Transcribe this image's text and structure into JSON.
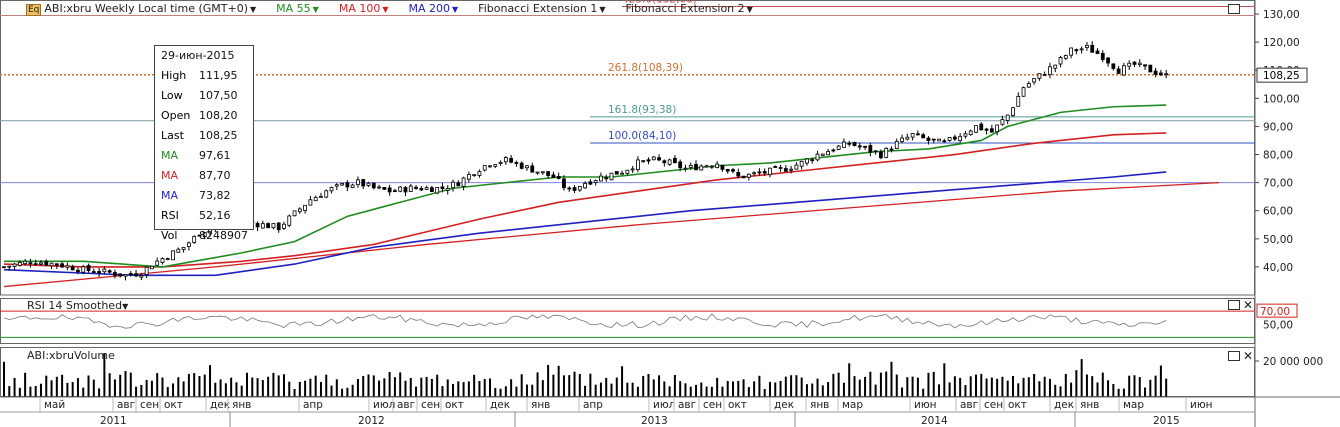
{
  "header": {
    "icon": "Eq",
    "instrument": "ABI:xbru Weekly Local time (GMT+0)",
    "ma55": "MA 55",
    "ma100": "MA 100",
    "ma200": "MA 200",
    "fib1": "Fibonacci Extension 1",
    "fib2": "Fibonacci Extension 2"
  },
  "info": {
    "date": "29-июн-2015",
    "rows": [
      {
        "label": "High",
        "value": "111,95",
        "color": "#000000"
      },
      {
        "label": "Low",
        "value": "107,50",
        "color": "#000000"
      },
      {
        "label": "Open",
        "value": "108,20",
        "color": "#000000"
      },
      {
        "label": "Last",
        "value": "108,25",
        "color": "#000000"
      },
      {
        "label": "MA",
        "value": "97,61",
        "color": "#1e8c1e"
      },
      {
        "label": "MA",
        "value": "87,70",
        "color": "#d42020"
      },
      {
        "label": "MA",
        "value": "73,82",
        "color": "#2020c0"
      },
      {
        "label": "RSI",
        "value": "52,16",
        "color": "#000000"
      },
      {
        "label": "Vol",
        "value": "8248907",
        "color": "#000000"
      }
    ]
  },
  "rsi_panel": {
    "title": "RSI 14 Smoothed",
    "level_label": "70,00"
  },
  "volume_panel": {
    "title": "ABI:xbruVolume",
    "axis_label": "20 000 000"
  },
  "chart_data": {
    "type": "candlestick",
    "price_axis": {
      "min": 30,
      "max": 135,
      "ticks": [
        "40,00",
        "50,00",
        "60,00",
        "70,00",
        "80,00",
        "90,00",
        "100,00",
        "110,00",
        "120,00",
        "130,00"
      ],
      "tick_values": [
        40,
        50,
        60,
        70,
        80,
        90,
        100,
        110,
        120,
        130
      ]
    },
    "last_price": {
      "value": 108.25,
      "label": "108,25"
    },
    "fibonacci_levels": [
      {
        "label": "423.6(132,68)",
        "value": 132.68,
        "color": "#c05050"
      },
      {
        "label": "261.8(108,39)",
        "value": 108.39,
        "color": "#d07030"
      },
      {
        "label": "161.8(93,38)",
        "value": 93.38,
        "color": "#4a9a9a"
      },
      {
        "label": "100.0(84,10)",
        "value": 84.1,
        "color": "#3050c0"
      }
    ],
    "horizontal_lines": [
      {
        "value": 129.5,
        "color": "#c08080"
      },
      {
        "value": 92.0,
        "color": "#7a9aa0"
      },
      {
        "value": 70.0,
        "color": "#8080e0"
      }
    ],
    "series_anchors": {
      "close": [
        [
          0,
          40
        ],
        [
          5,
          42
        ],
        [
          10,
          41
        ],
        [
          15,
          39
        ],
        [
          20,
          38
        ],
        [
          23,
          37
        ],
        [
          26,
          38
        ],
        [
          28,
          41
        ],
        [
          31,
          44
        ],
        [
          34,
          47
        ],
        [
          37,
          52
        ],
        [
          40,
          55
        ],
        [
          43,
          56
        ],
        [
          46,
          56
        ],
        [
          49,
          55
        ],
        [
          52,
          54
        ],
        [
          55,
          59
        ],
        [
          58,
          64
        ],
        [
          61,
          67
        ],
        [
          64,
          69
        ],
        [
          67,
          70
        ],
        [
          70,
          68
        ],
        [
          73,
          67
        ],
        [
          77,
          68
        ],
        [
          80,
          68
        ],
        [
          83,
          68
        ],
        [
          86,
          70
        ],
        [
          89,
          74
        ],
        [
          92,
          77
        ],
        [
          95,
          78
        ],
        [
          98,
          76
        ],
        [
          101,
          74
        ],
        [
          104,
          72
        ],
        [
          107,
          67
        ],
        [
          110,
          70
        ],
        [
          113,
          72
        ],
        [
          117,
          74
        ],
        [
          120,
          77
        ],
        [
          123,
          78
        ],
        [
          126,
          77
        ],
        [
          129,
          75
        ],
        [
          132,
          76
        ],
        [
          135,
          77
        ],
        [
          139,
          72
        ],
        [
          142,
          73
        ],
        [
          145,
          74
        ],
        [
          148,
          75
        ],
        [
          151,
          77
        ],
        [
          154,
          80
        ],
        [
          157,
          82
        ],
        [
          160,
          84
        ],
        [
          163,
          82
        ],
        [
          166,
          80
        ],
        [
          169,
          84
        ],
        [
          172,
          87
        ],
        [
          175,
          85
        ],
        [
          178,
          84
        ],
        [
          181,
          87
        ],
        [
          184,
          90
        ],
        [
          187,
          88
        ],
        [
          190,
          94
        ],
        [
          193,
          104
        ],
        [
          196,
          108
        ],
        [
          199,
          112
        ],
        [
          202,
          117
        ],
        [
          205,
          118
        ],
        [
          208,
          115
        ],
        [
          211,
          110
        ],
        [
          214,
          112
        ],
        [
          217,
          110
        ],
        [
          220,
          108
        ]
      ],
      "ma55": [
        [
          0,
          42
        ],
        [
          15,
          42
        ],
        [
          30,
          40
        ],
        [
          45,
          45
        ],
        [
          55,
          49
        ],
        [
          65,
          58
        ],
        [
          75,
          63
        ],
        [
          85,
          68
        ],
        [
          95,
          70
        ],
        [
          105,
          72
        ],
        [
          115,
          72
        ],
        [
          125,
          74
        ],
        [
          135,
          76
        ],
        [
          145,
          77
        ],
        [
          155,
          79
        ],
        [
          165,
          81
        ],
        [
          175,
          82
        ],
        [
          185,
          85
        ],
        [
          190,
          90
        ],
        [
          200,
          95
        ],
        [
          210,
          97
        ],
        [
          220,
          97.6
        ]
      ],
      "ma100": [
        [
          0,
          41
        ],
        [
          15,
          40
        ],
        [
          30,
          40
        ],
        [
          45,
          42
        ],
        [
          55,
          44
        ],
        [
          70,
          48
        ],
        [
          90,
          57
        ],
        [
          105,
          63
        ],
        [
          120,
          67
        ],
        [
          135,
          71
        ],
        [
          150,
          74
        ],
        [
          165,
          77
        ],
        [
          180,
          80
        ],
        [
          195,
          84
        ],
        [
          210,
          87
        ],
        [
          220,
          87.7
        ]
      ],
      "ma200": [
        [
          0,
          39
        ],
        [
          25,
          37
        ],
        [
          40,
          37
        ],
        [
          55,
          41
        ],
        [
          70,
          47
        ],
        [
          90,
          52
        ],
        [
          110,
          56
        ],
        [
          130,
          60
        ],
        [
          150,
          63
        ],
        [
          170,
          66
        ],
        [
          190,
          69
        ],
        [
          210,
          72
        ],
        [
          220,
          73.8
        ]
      ],
      "trend_channel": [
        [
          0,
          33
        ],
        [
          40,
          40
        ],
        [
          80,
          48
        ],
        [
          120,
          55
        ],
        [
          160,
          61
        ],
        [
          200,
          67
        ],
        [
          230,
          70
        ]
      ]
    },
    "rsi": {
      "levels": [
        70
      ],
      "last": 52.16,
      "axis_ticks": [
        "50,00"
      ]
    },
    "x_axis": {
      "months": [
        "май",
        "авг",
        "сен",
        "окт",
        "дек",
        "янв",
        "апр",
        "июл",
        "авг",
        "сен",
        "окт",
        "дек",
        "янв",
        "апр",
        "июл",
        "авг",
        "сен",
        "окт",
        "дек",
        "янв",
        "мар",
        "июн",
        "авг",
        "сен",
        "окт",
        "дек",
        "янв",
        "мар",
        "июн"
      ],
      "years": [
        "2011",
        "2012",
        "2013",
        "2014",
        "2015"
      ]
    }
  }
}
